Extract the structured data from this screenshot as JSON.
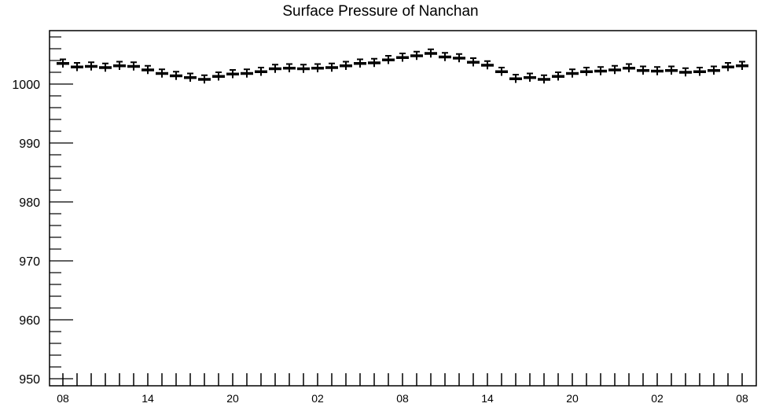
{
  "chart_data": {
    "type": "scatter",
    "title": "Surface Pressure of Nanchan",
    "xlabel": "",
    "ylabel": "",
    "x_tick_labels": [
      "08",
      "14",
      "20",
      "02",
      "08",
      "14",
      "20",
      "02",
      "08"
    ],
    "x_tick_label_index": [
      0,
      6,
      12,
      18,
      24,
      30,
      36,
      42,
      48
    ],
    "ylim": [
      950,
      1008
    ],
    "y_ticks": [
      950,
      960,
      970,
      980,
      990,
      1000
    ],
    "grid": false,
    "legend": "none",
    "error": 0.7,
    "series": [
      {
        "values": [
          1003.5,
          1002.9,
          1003.0,
          1002.8,
          1003.1,
          1003.0,
          1002.4,
          1001.8,
          1001.4,
          1001.1,
          1000.8,
          1001.3,
          1001.7,
          1001.8,
          1002.1,
          1002.6,
          1002.7,
          1002.6,
          1002.7,
          1002.8,
          1003.1,
          1003.5,
          1003.6,
          1004.1,
          1004.5,
          1004.8,
          1005.2,
          1004.6,
          1004.4,
          1003.7,
          1003.2,
          1002.1,
          1000.9,
          1001.1,
          1000.8,
          1001.3,
          1001.8,
          1002.1,
          1002.2,
          1002.4,
          1002.7,
          1002.3,
          1002.2,
          1002.3,
          1002.0,
          1002.1,
          1002.3,
          1002.9,
          1003.1
        ]
      }
    ]
  },
  "style": {
    "marker_color": "#000000",
    "axis_color": "#000000"
  }
}
